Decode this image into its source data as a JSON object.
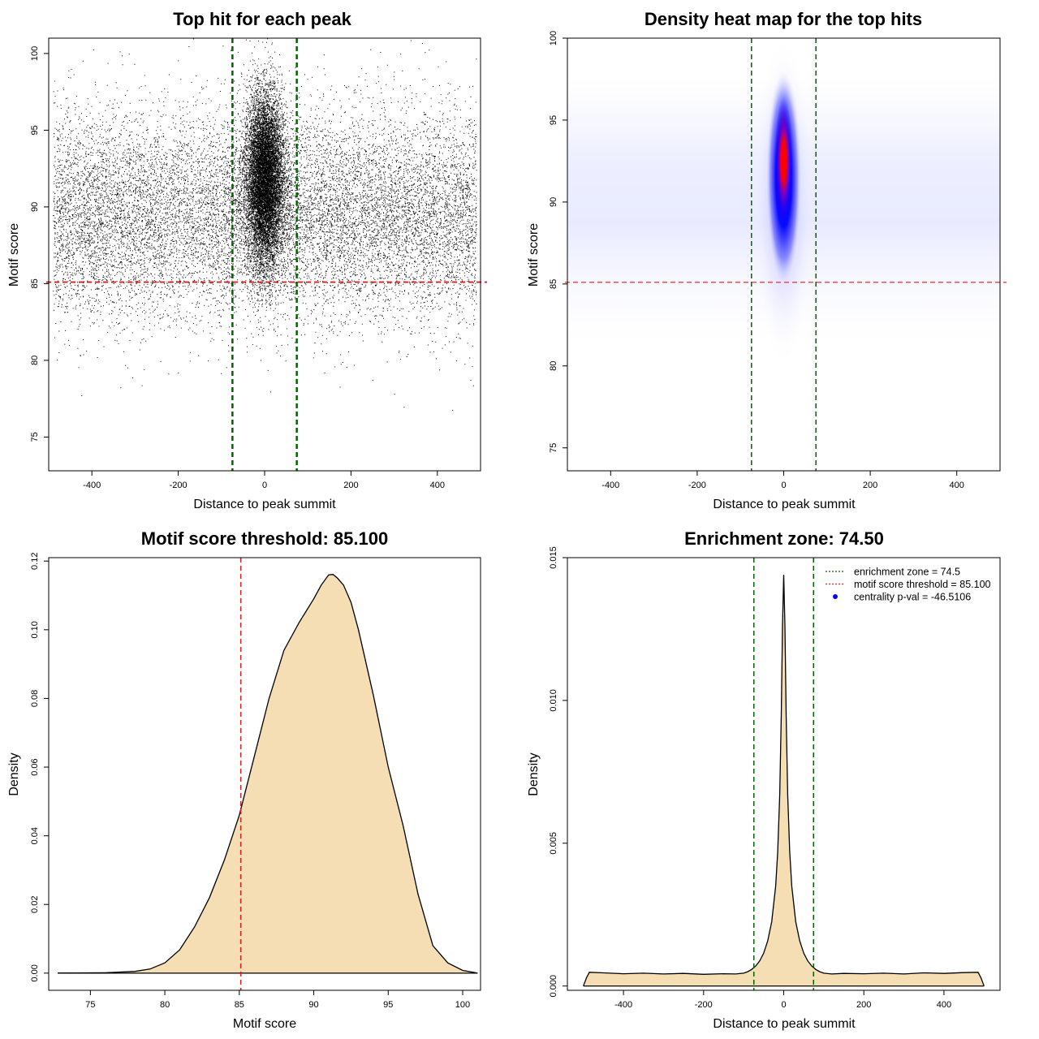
{
  "chart_data": [
    {
      "type": "scatter",
      "title": "Top hit for each peak",
      "xlabel": "Distance to peak summit",
      "ylabel": "Motif score",
      "xlim": [
        -500,
        500
      ],
      "ylim": [
        72.8,
        101
      ],
      "x_ticks": [
        -400,
        -200,
        0,
        200,
        400
      ],
      "y_ticks": [
        75,
        80,
        85,
        90,
        95,
        100
      ],
      "vlines": [
        {
          "x": -74.5,
          "color": "#006400",
          "style": "dashed"
        },
        {
          "x": 74.5,
          "color": "#006400",
          "style": "dashed"
        }
      ],
      "hlines": [
        {
          "y": 85.1,
          "color": "#e31a1c",
          "style": "dashed"
        }
      ],
      "point_distribution": {
        "background": {
          "x_range": [
            -490,
            490
          ],
          "y_mean": 89.5,
          "y_sd": 3.4
        },
        "central": {
          "x_mean": 0,
          "x_sd": 22,
          "y_mean": 91.8,
          "y_sd": 2.8
        }
      }
    },
    {
      "type": "heatmap",
      "title": "Density heat map for the top hits",
      "xlabel": "Distance to peak summit",
      "ylabel": "Motif score",
      "xlim": [
        -500,
        500
      ],
      "ylim": [
        73.6,
        100
      ],
      "x_ticks": [
        -400,
        -200,
        0,
        200,
        400
      ],
      "y_ticks": [
        75,
        80,
        85,
        90,
        95,
        100
      ],
      "colors": [
        "#ffffff",
        "#0000ff",
        "#ff0000"
      ],
      "peak": {
        "x": 0,
        "y": 92.5
      },
      "vlines": [
        {
          "x": -74.5,
          "color": "#006400",
          "style": "dashed"
        },
        {
          "x": 74.5,
          "color": "#006400",
          "style": "dashed"
        }
      ],
      "hlines": [
        {
          "y": 85.1,
          "color": "#e31a1c",
          "style": "dashed"
        }
      ]
    },
    {
      "type": "area",
      "title": "Motif score threshold: 85.100",
      "xlabel": "Motif score",
      "ylabel": "Density",
      "xlim": [
        72.2,
        101.2
      ],
      "ylim": [
        -0.005,
        0.121
      ],
      "x_ticks": [
        75,
        80,
        85,
        90,
        95,
        100
      ],
      "y_ticks": [
        0.0,
        0.02,
        0.04,
        0.06,
        0.08,
        0.1,
        0.12
      ],
      "y_tick_labels": [
        "0.00",
        "0.02",
        "0.04",
        "0.06",
        "0.08",
        "0.10",
        "0.12"
      ],
      "fill_color": "#f5deb3",
      "x": [
        72.8,
        76,
        78,
        79,
        80,
        81,
        82,
        83,
        84,
        85,
        86,
        87,
        88,
        89,
        90,
        90.5,
        91,
        91.3,
        91.6,
        92,
        92.5,
        93,
        94,
        95,
        96,
        97,
        98,
        99,
        100,
        101
      ],
      "y": [
        0.0,
        0.0001,
        0.0005,
        0.0012,
        0.003,
        0.0068,
        0.0135,
        0.022,
        0.033,
        0.046,
        0.063,
        0.08,
        0.094,
        0.102,
        0.109,
        0.113,
        0.116,
        0.1161,
        0.115,
        0.113,
        0.108,
        0.1,
        0.081,
        0.06,
        0.043,
        0.023,
        0.008,
        0.003,
        0.0008,
        0.0
      ],
      "vlines": [
        {
          "x": 85.1,
          "color": "#e31a1c",
          "style": "dashed"
        }
      ]
    },
    {
      "type": "area",
      "title": "Enrichment zone: 74.50",
      "xlabel": "Distance to peak summit",
      "ylabel": "Density",
      "xlim": [
        -540,
        540
      ],
      "ylim": [
        -0.00015,
        0.015
      ],
      "x_ticks": [
        -400,
        -200,
        0,
        200,
        400
      ],
      "y_ticks": [
        0.0,
        0.005,
        0.01,
        0.015
      ],
      "y_tick_labels": [
        "0.000",
        "0.005",
        "0.010",
        "0.015"
      ],
      "fill_color": "#f5deb3",
      "x": [
        -500,
        -492,
        -485,
        -450,
        -400,
        -350,
        -300,
        -250,
        -200,
        -150,
        -120,
        -100,
        -90,
        -80,
        -70,
        -60,
        -50,
        -40,
        -30,
        -20,
        -15,
        -10,
        -6,
        -3,
        0,
        3,
        6,
        10,
        15,
        20,
        30,
        40,
        50,
        60,
        70,
        80,
        90,
        100,
        120,
        150,
        200,
        250,
        300,
        350,
        400,
        450,
        485,
        492,
        500
      ],
      "y": [
        0.0,
        0.0003,
        0.00048,
        0.00046,
        0.00043,
        0.00045,
        0.00042,
        0.00044,
        0.00041,
        0.00043,
        0.00042,
        0.00045,
        0.0005,
        0.00058,
        0.0007,
        0.00088,
        0.00115,
        0.00158,
        0.00225,
        0.0035,
        0.0047,
        0.0067,
        0.0095,
        0.0126,
        0.0144,
        0.0126,
        0.0095,
        0.0067,
        0.0047,
        0.0035,
        0.00225,
        0.00158,
        0.00115,
        0.00088,
        0.0007,
        0.00058,
        0.0005,
        0.00045,
        0.00042,
        0.00044,
        0.00043,
        0.00045,
        0.00042,
        0.00046,
        0.00044,
        0.00047,
        0.00048,
        0.0003,
        0.0
      ],
      "vlines": [
        {
          "x": -74.5,
          "color": "#006400",
          "style": "dashed"
        },
        {
          "x": 74.5,
          "color": "#006400",
          "style": "dashed"
        }
      ],
      "legend": {
        "position": "top-right",
        "entries": [
          {
            "label": "enrichment zone = 74.5",
            "color": "#006400",
            "style": "dotted-line"
          },
          {
            "label": "motif score threshold = 85.100",
            "color": "#e31a1c",
            "style": "dotted-line"
          },
          {
            "label": "centrality p-val = -46.5106",
            "color": "#0000ff",
            "style": "point"
          }
        ]
      }
    }
  ]
}
